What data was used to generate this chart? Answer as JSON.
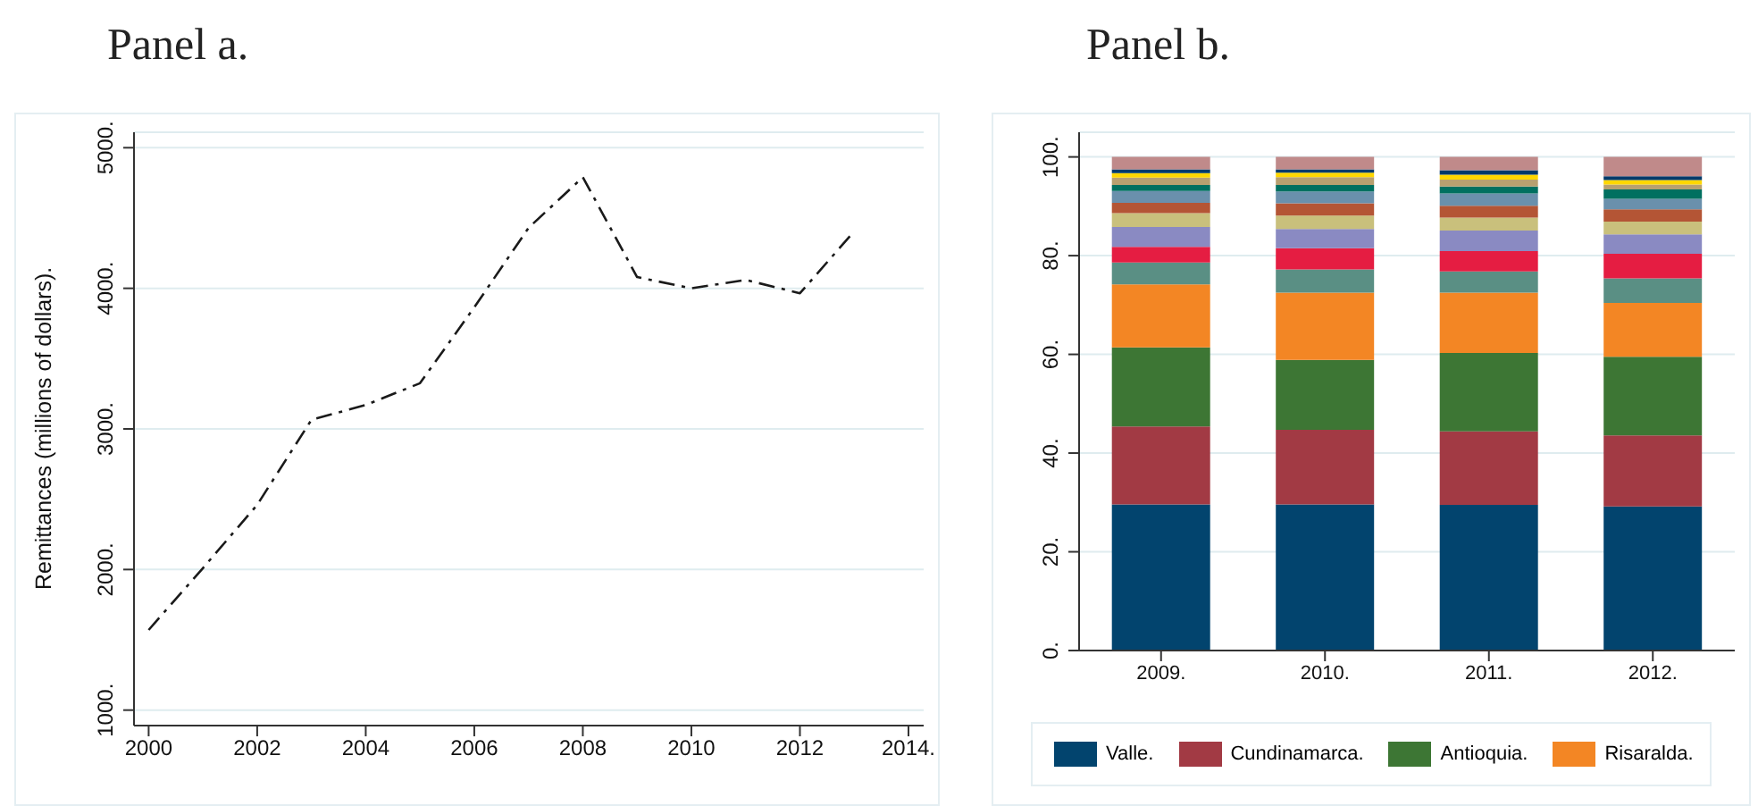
{
  "chart_data": [
    {
      "type": "line",
      "title": "Panel a.",
      "ylabel": "Remittances (millions of dollars).",
      "x": [
        2000,
        2001,
        2002,
        2003,
        2004,
        2005,
        2006,
        2007,
        2008,
        2009,
        2010,
        2011,
        2012,
        2013
      ],
      "series": [
        {
          "color": "#1a1a1a",
          "values": [
            1570,
            2010,
            2460,
            3065,
            3170,
            3325,
            3865,
            4430,
            4790,
            4080,
            4000,
            4060,
            3965,
            4405
          ]
        }
      ],
      "xlim": [
        1999.73,
        2014.28
      ],
      "xticks": [
        2000,
        2002,
        2004,
        2006,
        2008,
        2010,
        2012,
        {
          "value": 2014,
          "label": "2014."
        }
      ],
      "ylim": [
        890,
        5110
      ],
      "yticks": [
        {
          "value": 1000,
          "label": "1000."
        },
        {
          "value": 2000,
          "label": "2000."
        },
        {
          "value": 3000,
          "label": "3000."
        },
        {
          "value": 4000,
          "label": "4000."
        },
        {
          "value": 5000,
          "label": "5000."
        }
      ],
      "grid": "y",
      "line_style": "dashed",
      "marker": "none"
    },
    {
      "type": "bar",
      "title": "Panel b.",
      "stacked": true,
      "categories": [
        "2009.",
        "2010.",
        "2011.",
        "2012."
      ],
      "series": [
        {
          "name": "Valle.",
          "color": "#02446e",
          "values": [
            29.6,
            29.6,
            29.5,
            29.2
          ]
        },
        {
          "name": "Cundinamarca.",
          "color": "#a23a44",
          "values": [
            15.8,
            15.1,
            14.9,
            14.4
          ]
        },
        {
          "name": "Antioquia.",
          "color": "#3d7634",
          "values": [
            16.0,
            14.2,
            15.9,
            15.9
          ]
        },
        {
          "name": "Risaralda.",
          "color": "#f38624",
          "values": [
            12.8,
            13.6,
            12.2,
            10.9
          ]
        },
        {
          "color": "#5a8f84",
          "values": [
            4.4,
            4.7,
            4.3,
            5.0
          ]
        },
        {
          "color": "#e51d42",
          "values": [
            3.2,
            4.3,
            4.1,
            5.0
          ]
        },
        {
          "color": "#8a8ac2",
          "values": [
            4.0,
            3.9,
            4.2,
            3.9
          ]
        },
        {
          "color": "#c9c07c",
          "values": [
            2.8,
            2.7,
            2.6,
            2.6
          ]
        },
        {
          "color": "#b45535",
          "values": [
            2.1,
            2.5,
            2.4,
            2.5
          ]
        },
        {
          "color": "#6a90ac",
          "values": [
            2.4,
            2.4,
            2.5,
            2.1
          ]
        },
        {
          "color": "#007060",
          "values": [
            1.2,
            1.3,
            1.4,
            1.9
          ]
        },
        {
          "color": "#b8a070",
          "values": [
            1.5,
            1.6,
            1.4,
            1.0
          ]
        },
        {
          "color": "#ffd700",
          "values": [
            0.9,
            0.9,
            1.0,
            0.9
          ]
        },
        {
          "color": "#003a6a",
          "values": [
            0.8,
            0.7,
            0.9,
            0.8
          ]
        },
        {
          "color": "#c08a8a",
          "values": [
            2.5,
            2.5,
            2.7,
            3.9
          ]
        }
      ],
      "ylim": [
        0,
        105
      ],
      "yticks": [
        {
          "value": 0,
          "label": "0."
        },
        {
          "value": 20,
          "label": "20."
        },
        {
          "value": 40,
          "label": "40."
        },
        {
          "value": 60,
          "label": "60."
        },
        {
          "value": 80,
          "label": "80."
        },
        {
          "value": 100,
          "label": "100."
        }
      ],
      "grid": "y",
      "legend": "bottom"
    }
  ]
}
